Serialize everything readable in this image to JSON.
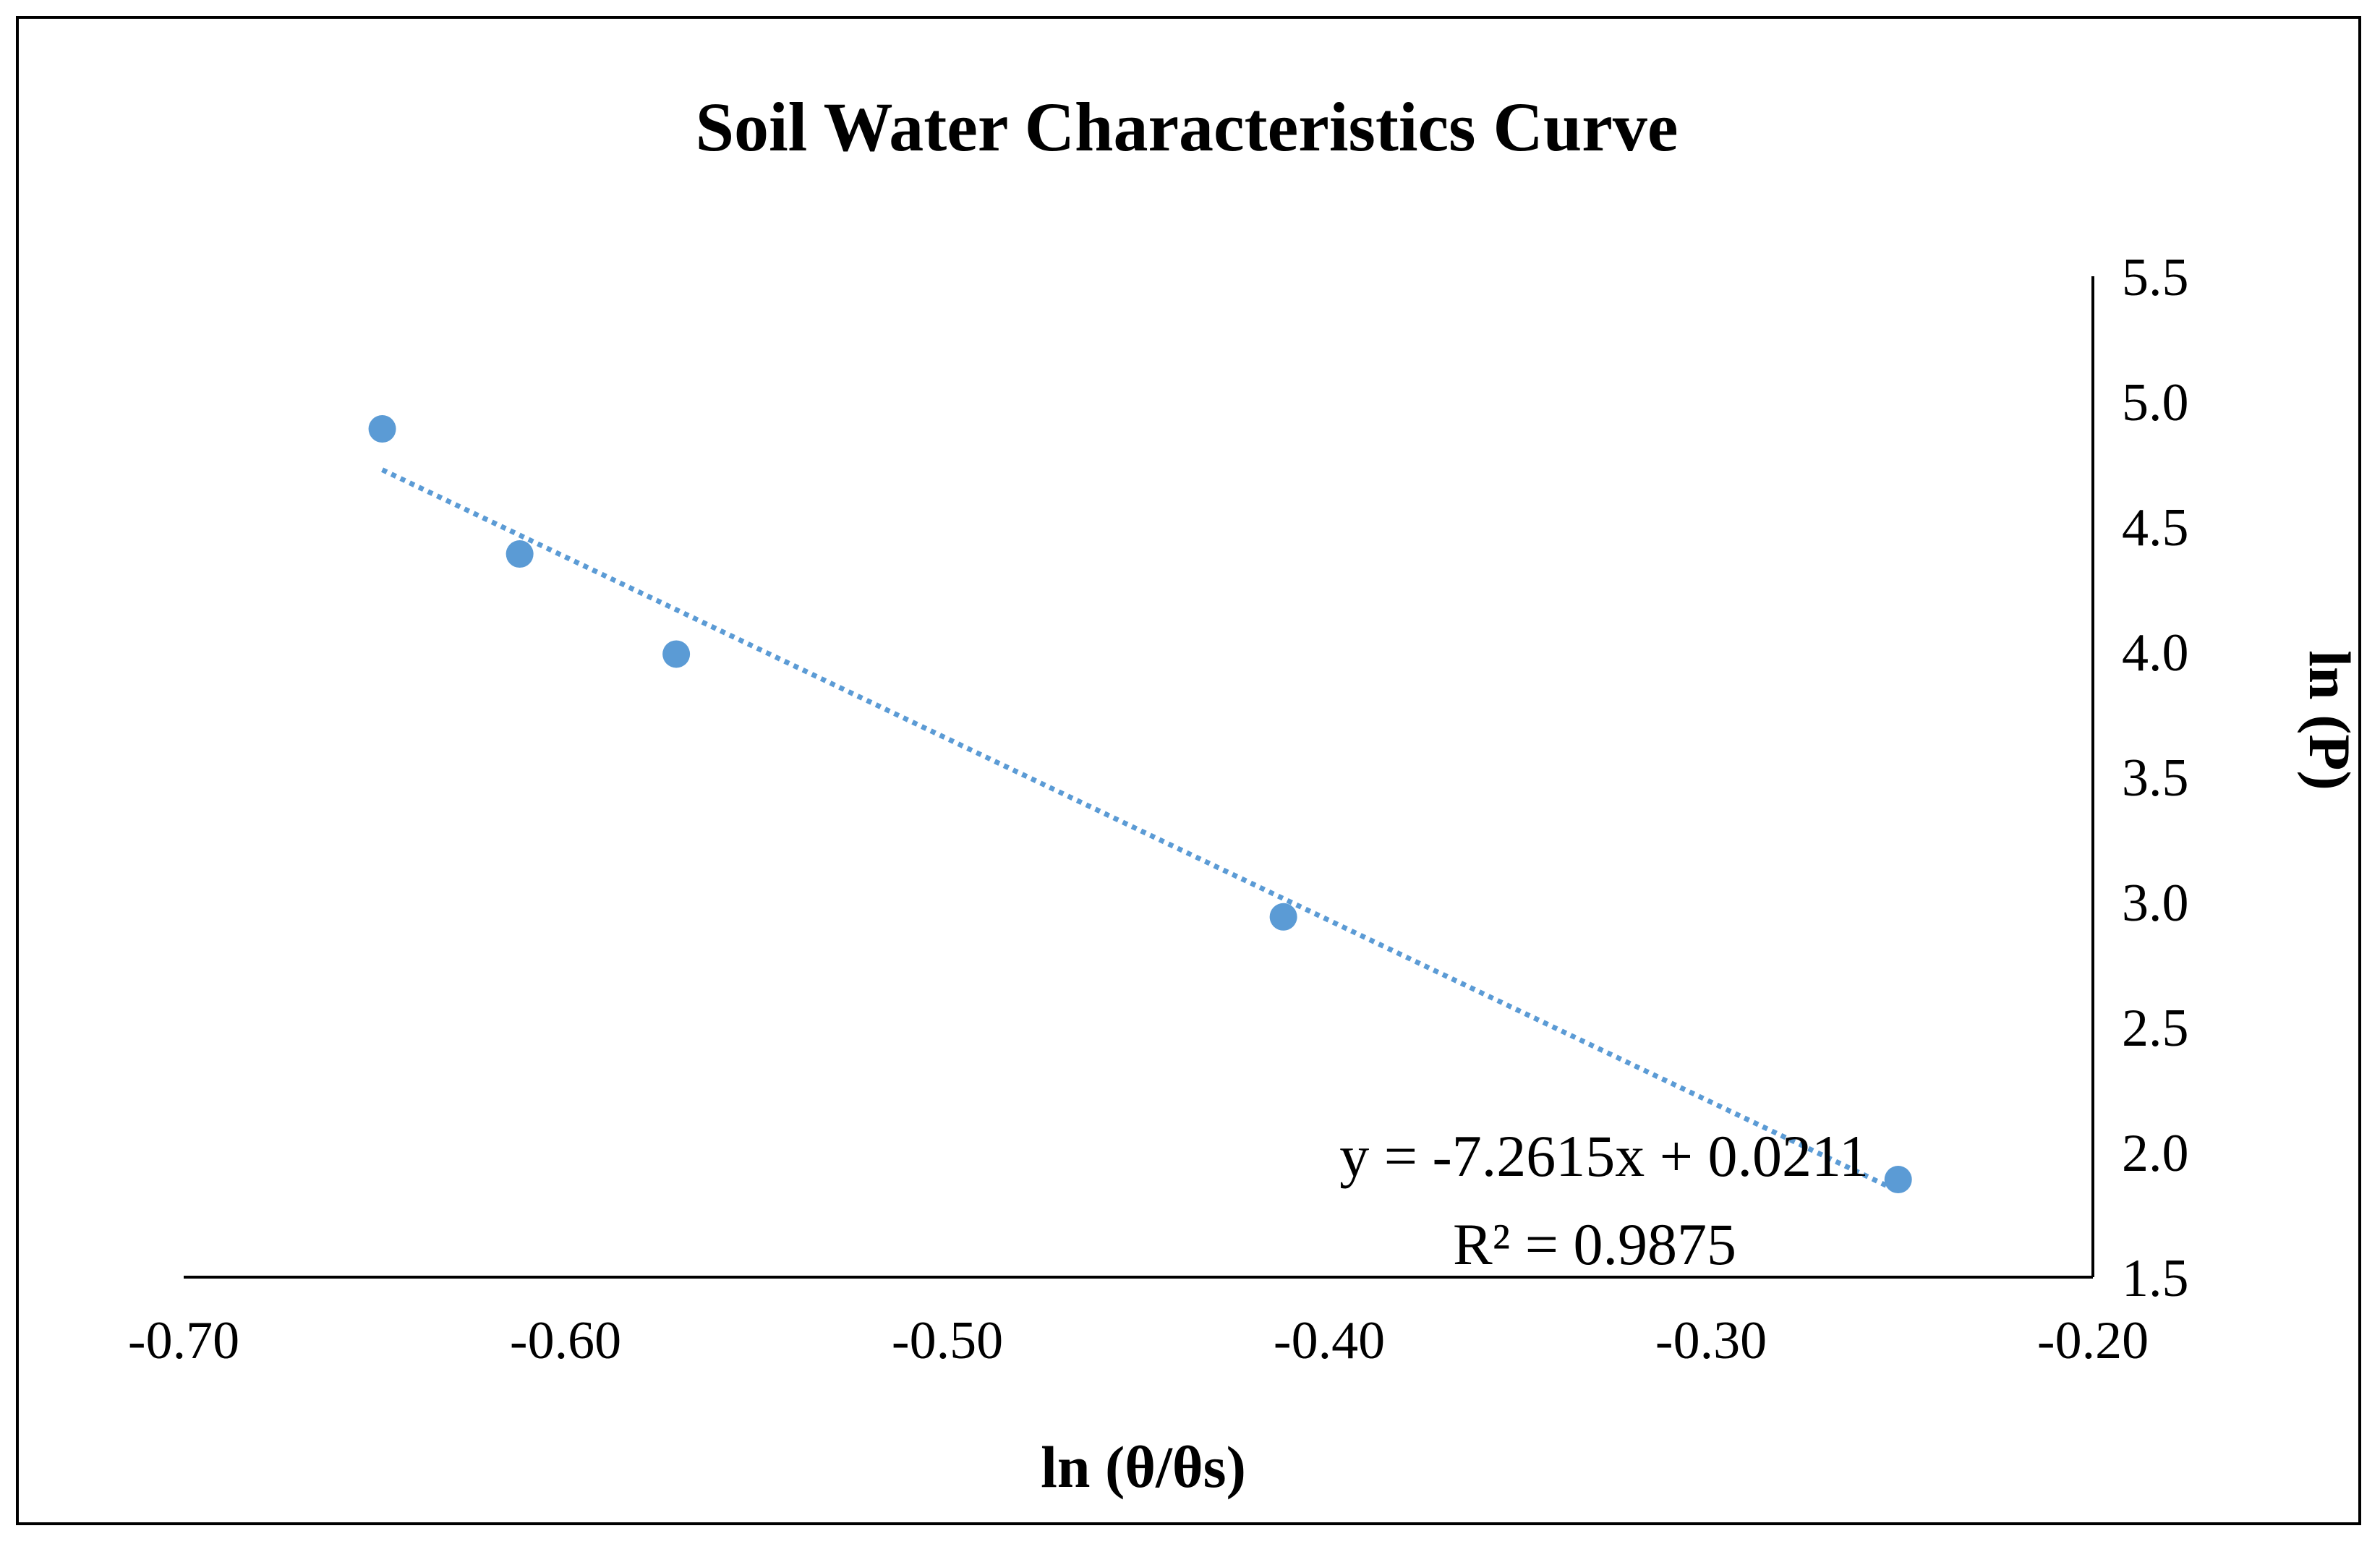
{
  "chart_data": {
    "type": "scatter",
    "title": "Soil Water Characteristics Curve",
    "xlabel": "ln (θ/θs)",
    "ylabel": "ln (P)",
    "xlim": [
      -0.7,
      -0.2
    ],
    "ylim": [
      1.5,
      5.5
    ],
    "x_ticks": [
      "-0.70",
      "-0.60",
      "-0.50",
      "-0.40",
      "-0.30",
      "-0.20"
    ],
    "y_ticks": [
      "1.5",
      "2.0",
      "2.5",
      "3.0",
      "3.5",
      "4.0",
      "4.5",
      "5.0",
      "5.5"
    ],
    "grid": false,
    "legend": "none",
    "series": [
      {
        "name": "ln (P)",
        "x": [
          -0.648,
          -0.612,
          -0.571,
          -0.412,
          -0.251
        ],
        "y": [
          4.89,
          4.39,
          3.99,
          2.94,
          1.89
        ]
      }
    ],
    "trendline": {
      "type": "linear",
      "slope": -7.2615,
      "intercept": 0.0211,
      "x_range": [
        -0.648,
        -0.251
      ],
      "equation": "y = -7.2615x + 0.0211",
      "r_squared": "R² = 0.9875"
    },
    "colors": {
      "marker": "#5b9bd5",
      "trendline": "#5b9bd5",
      "axis": "#000000"
    }
  }
}
